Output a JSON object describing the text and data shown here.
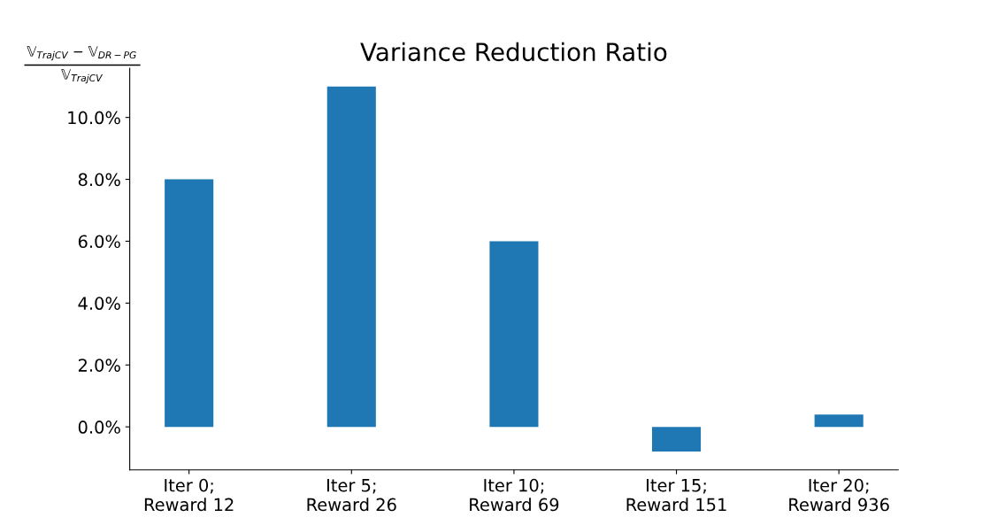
{
  "chart_data": {
    "type": "bar",
    "title": "Variance Reduction Ratio",
    "ylabel": "𝕍$_{TrajCV}$ − 𝕍$_{DR−PG}$\n𝕍$_{TrajCV}$",
    "categories": [
      "Iter 0;\nReward 12",
      "Iter 5;\nReward 26",
      "Iter 10;\nReward 69",
      "Iter 15;\nReward 151",
      "Iter 20;\nReward 936"
    ],
    "values": [
      8.0,
      11.0,
      6.0,
      -0.8,
      0.4
    ],
    "color": "#1f77b4",
    "ylim": [
      -1.39,
      11.59
    ],
    "yticks": [
      {
        "value": 0,
        "label": "0.0%"
      },
      {
        "value": 2,
        "label": "2.0%"
      },
      {
        "value": 4,
        "label": "4.0%"
      },
      {
        "value": 6,
        "label": "6.0%"
      },
      {
        "value": 8,
        "label": "8.0%"
      },
      {
        "value": 10,
        "label": "10.0%"
      }
    ],
    "grid": false
  }
}
